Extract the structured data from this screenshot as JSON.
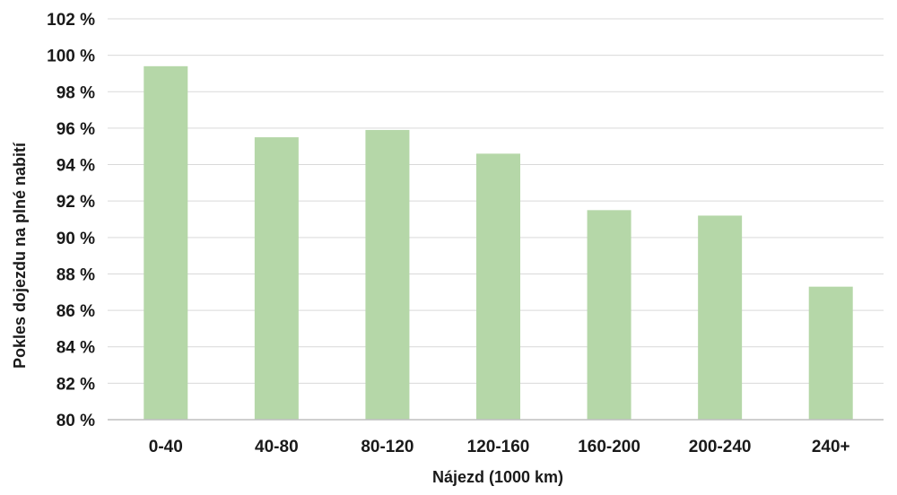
{
  "chart_data": {
    "type": "bar",
    "title": "",
    "xlabel": "Nájezd (1000 km)",
    "ylabel": "Pokles dojezdu na plné nabití",
    "categories": [
      "0-40",
      "40-80",
      "80-120",
      "120-160",
      "160-200",
      "200-240",
      "240+"
    ],
    "values": [
      99.4,
      95.5,
      95.9,
      94.6,
      91.5,
      91.2,
      87.3
    ],
    "ylim": [
      80,
      102
    ],
    "yticks": [
      80,
      82,
      84,
      86,
      88,
      90,
      92,
      94,
      96,
      98,
      100,
      102
    ],
    "ytick_labels": [
      "80 %",
      "82 %",
      "84 %",
      "86 %",
      "88 %",
      "90 %",
      "92 %",
      "94 %",
      "96 %",
      "98 %",
      "100 %",
      "102 %"
    ],
    "grid": true,
    "legend": "none",
    "colors": {
      "bar": "#b5d7a8",
      "grid": "#d9d9d9",
      "axis": "#bfbfbf",
      "text": "#1a1a1a"
    }
  }
}
